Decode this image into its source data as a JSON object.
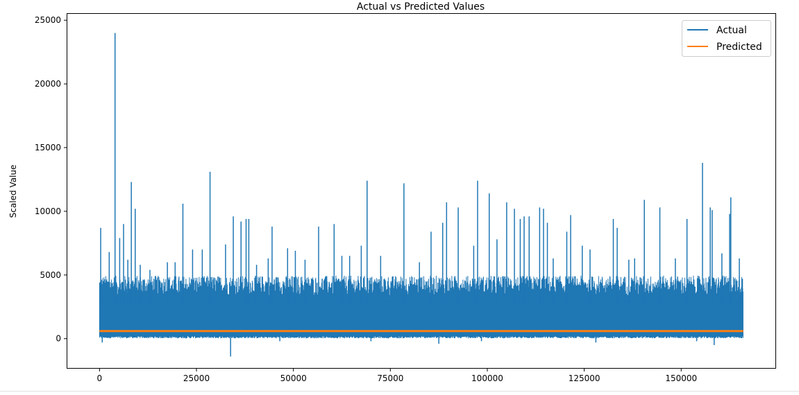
{
  "chart_data": {
    "type": "line",
    "title": "Actual vs Predicted Values",
    "xlabel": "",
    "ylabel": "Scaled Value",
    "xlim": [
      -8300,
      174300
    ],
    "ylim": [
      -2300,
      25500
    ],
    "x_ticks": [
      0,
      25000,
      50000,
      75000,
      100000,
      125000,
      150000
    ],
    "y_ticks": [
      0,
      5000,
      10000,
      15000,
      20000,
      25000
    ],
    "x_tick_labels": [
      "0",
      "25000",
      "50000",
      "75000",
      "100000",
      "125000",
      "150000"
    ],
    "y_tick_labels": [
      "0",
      "5000",
      "10000",
      "15000",
      "20000",
      "25000"
    ],
    "grid": false,
    "legend_position": "top-right",
    "series": [
      {
        "name": "Actual",
        "color": "#1f77b4",
        "x_range": [
          0,
          166000
        ],
        "typical_low": 150,
        "typical_high": 4500,
        "spikes": [
          {
            "x": 300,
            "y": 8700
          },
          {
            "x": 1500,
            "y": 4400
          },
          {
            "x": 2500,
            "y": 6800
          },
          {
            "x": 4000,
            "y": 24000
          },
          {
            "x": 5200,
            "y": 7900
          },
          {
            "x": 6200,
            "y": 9000
          },
          {
            "x": 7300,
            "y": 6200
          },
          {
            "x": 8200,
            "y": 12300
          },
          {
            "x": 9200,
            "y": 10200
          },
          {
            "x": 10500,
            "y": 5800
          },
          {
            "x": 13000,
            "y": 5400
          },
          {
            "x": 17500,
            "y": 6000
          },
          {
            "x": 19500,
            "y": 6000
          },
          {
            "x": 21500,
            "y": 10600
          },
          {
            "x": 24000,
            "y": 7000
          },
          {
            "x": 26500,
            "y": 7000
          },
          {
            "x": 28500,
            "y": 13100
          },
          {
            "x": 32500,
            "y": 7400
          },
          {
            "x": 34500,
            "y": 9600
          },
          {
            "x": 36500,
            "y": 9200
          },
          {
            "x": 37800,
            "y": 9400
          },
          {
            "x": 38500,
            "y": 9400
          },
          {
            "x": 40500,
            "y": 5800
          },
          {
            "x": 43500,
            "y": 6300
          },
          {
            "x": 44500,
            "y": 8800
          },
          {
            "x": 48500,
            "y": 7100
          },
          {
            "x": 50500,
            "y": 6900
          },
          {
            "x": 53000,
            "y": 6200
          },
          {
            "x": 56500,
            "y": 8800
          },
          {
            "x": 60500,
            "y": 9000
          },
          {
            "x": 62500,
            "y": 6500
          },
          {
            "x": 64500,
            "y": 6500
          },
          {
            "x": 67500,
            "y": 7300
          },
          {
            "x": 69000,
            "y": 12400
          },
          {
            "x": 72500,
            "y": 6500
          },
          {
            "x": 78500,
            "y": 12200
          },
          {
            "x": 82500,
            "y": 6000
          },
          {
            "x": 85500,
            "y": 8400
          },
          {
            "x": 88500,
            "y": 9100
          },
          {
            "x": 89500,
            "y": 10700
          },
          {
            "x": 92500,
            "y": 10300
          },
          {
            "x": 96500,
            "y": 7300
          },
          {
            "x": 97500,
            "y": 12400
          },
          {
            "x": 100500,
            "y": 11400
          },
          {
            "x": 102500,
            "y": 7800
          },
          {
            "x": 105000,
            "y": 10700
          },
          {
            "x": 107000,
            "y": 10200
          },
          {
            "x": 108500,
            "y": 9400
          },
          {
            "x": 109500,
            "y": 9600
          },
          {
            "x": 110800,
            "y": 9600
          },
          {
            "x": 113500,
            "y": 10300
          },
          {
            "x": 114500,
            "y": 10200
          },
          {
            "x": 115500,
            "y": 9100
          },
          {
            "x": 117000,
            "y": 6300
          },
          {
            "x": 120500,
            "y": 8400
          },
          {
            "x": 121500,
            "y": 9700
          },
          {
            "x": 124500,
            "y": 7300
          },
          {
            "x": 126500,
            "y": 7000
          },
          {
            "x": 132500,
            "y": 9400
          },
          {
            "x": 133500,
            "y": 8700
          },
          {
            "x": 136500,
            "y": 6200
          },
          {
            "x": 138000,
            "y": 6300
          },
          {
            "x": 140500,
            "y": 10900
          },
          {
            "x": 144500,
            "y": 10300
          },
          {
            "x": 148500,
            "y": 6300
          },
          {
            "x": 151500,
            "y": 9400
          },
          {
            "x": 155500,
            "y": 13800
          },
          {
            "x": 157500,
            "y": 10300
          },
          {
            "x": 158000,
            "y": 10100
          },
          {
            "x": 160500,
            "y": 6700
          },
          {
            "x": 162500,
            "y": 9800
          },
          {
            "x": 162800,
            "y": 11100
          },
          {
            "x": 165000,
            "y": 6300
          },
          {
            "x": 165800,
            "y": 4700
          }
        ],
        "dips": [
          {
            "x": 700,
            "y": -300
          },
          {
            "x": 33800,
            "y": -1400
          },
          {
            "x": 46500,
            "y": -200
          },
          {
            "x": 70000,
            "y": -200
          },
          {
            "x": 87500,
            "y": -400
          },
          {
            "x": 98500,
            "y": -200
          },
          {
            "x": 128000,
            "y": -300
          },
          {
            "x": 154000,
            "y": -200
          },
          {
            "x": 158500,
            "y": -500
          }
        ]
      },
      {
        "name": "Predicted",
        "color": "#ff7f0e",
        "x_range": [
          0,
          166000
        ],
        "constant_value": 600
      }
    ]
  }
}
